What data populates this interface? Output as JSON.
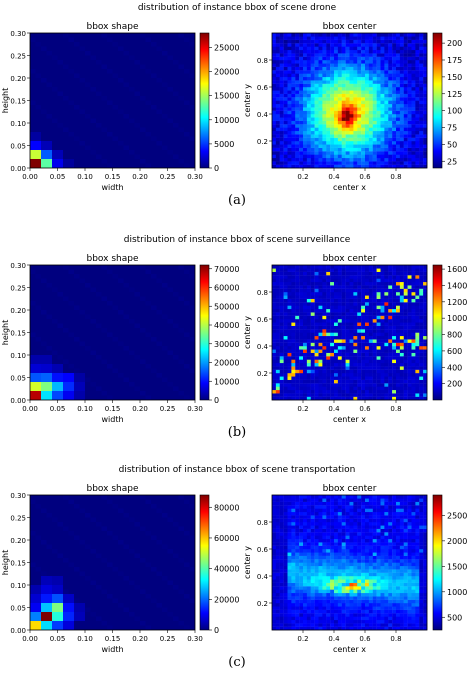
{
  "caption_labels": [
    "(a)",
    "(b)",
    "(c)"
  ],
  "colors": {
    "colormap": "jet",
    "stops": [
      "#00007f",
      "#0000ff",
      "#007fff",
      "#00ffff",
      "#7fff7f",
      "#ffff00",
      "#ff7f00",
      "#ff0000",
      "#7f0000"
    ]
  },
  "chart_data": [
    {
      "type": "heatmap",
      "title": "distribution of instance bbox of scene drone",
      "panels": [
        {
          "title": "bbox shape",
          "xlabel": "width",
          "ylabel": "height",
          "xlim": [
            0,
            0.3
          ],
          "ylim": [
            0,
            0.3
          ],
          "xticks": [
            "0.00",
            "0.05",
            "0.10",
            "0.15",
            "0.20",
            "0.25",
            "0.30"
          ],
          "yticks": [
            "0.00",
            "0.05",
            "0.10",
            "0.15",
            "0.20",
            "0.25",
            "0.30"
          ],
          "colorbar_max": 28000,
          "colorbar_ticks": [
            0,
            5000,
            10000,
            15000,
            20000,
            25000
          ],
          "hot_bins": [
            [
              0,
              0,
              28000
            ],
            [
              0,
              1,
              16000
            ],
            [
              1,
              0,
              13000
            ],
            [
              1,
              1,
              6000
            ],
            [
              2,
              0,
              3000
            ],
            [
              0,
              2,
              3500
            ],
            [
              1,
              2,
              1500
            ],
            [
              2,
              1,
              1500
            ],
            [
              3,
              0,
              800
            ],
            [
              0,
              3,
              900
            ]
          ]
        },
        {
          "title": "bbox center",
          "xlabel": "center x",
          "ylabel": "center y",
          "xlim": [
            0,
            1
          ],
          "ylim": [
            0,
            1
          ],
          "xticks": [
            "0.2",
            "0.4",
            "0.6",
            "0.8"
          ],
          "yticks": [
            "0.2",
            "0.4",
            "0.6",
            "0.8"
          ],
          "colorbar_min": 15,
          "colorbar_max": 215,
          "colorbar_ticks": [
            25,
            50,
            75,
            100,
            125,
            150,
            175,
            200
          ],
          "pattern": "central_blob",
          "peak": {
            "x": 0.49,
            "y": 0.38,
            "value": 215
          }
        }
      ]
    },
    {
      "type": "heatmap",
      "title": "distribution of instance bbox of scene surveillance",
      "panels": [
        {
          "title": "bbox shape",
          "xlabel": "width",
          "ylabel": "height",
          "xlim": [
            0,
            0.3
          ],
          "ylim": [
            0,
            0.3
          ],
          "xticks": [
            "0.00",
            "0.05",
            "0.10",
            "0.15",
            "0.20",
            "0.25",
            "0.30"
          ],
          "yticks": [
            "0.00",
            "0.05",
            "0.10",
            "0.15",
            "0.20",
            "0.25",
            "0.30"
          ],
          "colorbar_max": 72000,
          "colorbar_ticks": [
            0,
            10000,
            20000,
            30000,
            40000,
            50000,
            60000,
            70000
          ],
          "hot_bins": [
            [
              0,
              0,
              68000
            ],
            [
              0,
              1,
              42000
            ],
            [
              1,
              1,
              36000
            ],
            [
              1,
              0,
              25000
            ],
            [
              2,
              1,
              22000
            ],
            [
              0,
              2,
              15000
            ],
            [
              2,
              0,
              14000
            ],
            [
              1,
              2,
              16000
            ],
            [
              3,
              1,
              12000
            ],
            [
              2,
              2,
              10000
            ],
            [
              3,
              0,
              8000
            ],
            [
              3,
              2,
              9000
            ],
            [
              0,
              3,
              6000
            ],
            [
              1,
              3,
              5500
            ],
            [
              4,
              1,
              4000
            ],
            [
              4,
              0,
              3000
            ],
            [
              2,
              3,
              3500
            ],
            [
              1,
              4,
              3000
            ],
            [
              0,
              4,
              3000
            ],
            [
              4,
              2,
              2500
            ]
          ]
        },
        {
          "title": "bbox center",
          "xlabel": "center x",
          "ylabel": "center y",
          "xlim": [
            0,
            1
          ],
          "ylim": [
            0,
            1
          ],
          "xticks": [
            "0.2",
            "0.4",
            "0.6",
            "0.8"
          ],
          "yticks": [
            "0.2",
            "0.4",
            "0.6",
            "0.8"
          ],
          "colorbar_min": 0,
          "colorbar_max": 1650,
          "colorbar_ticks": [
            200,
            400,
            600,
            800,
            1000,
            1200,
            1400,
            1600
          ],
          "pattern": "sparse_diagonal"
        }
      ]
    },
    {
      "type": "heatmap",
      "title": "distribution of instance bbox of scene transportation",
      "panels": [
        {
          "title": "bbox shape",
          "xlabel": "width",
          "ylabel": "height",
          "xlim": [
            0,
            0.3
          ],
          "ylim": [
            0,
            0.3
          ],
          "xticks": [
            "0.00",
            "0.05",
            "0.10",
            "0.15",
            "0.20",
            "0.25",
            "0.30"
          ],
          "yticks": [
            "0.00",
            "0.05",
            "0.10",
            "0.15",
            "0.20",
            "0.25",
            "0.30"
          ],
          "colorbar_max": 88000,
          "colorbar_ticks": [
            0,
            20000,
            40000,
            60000,
            80000
          ],
          "hot_bins": [
            [
              0,
              0,
              58000
            ],
            [
              1,
              0,
              30000
            ],
            [
              1,
              1,
              88000
            ],
            [
              0,
              1,
              22000
            ],
            [
              2,
              1,
              36000
            ],
            [
              2,
              2,
              44000
            ],
            [
              1,
              2,
              28000
            ],
            [
              2,
              0,
              16000
            ],
            [
              3,
              1,
              14000
            ],
            [
              2,
              3,
              18000
            ],
            [
              1,
              3,
              13000
            ],
            [
              3,
              2,
              12000
            ],
            [
              3,
              0,
              8000
            ],
            [
              0,
              2,
              10000
            ],
            [
              0,
              3,
              7000
            ],
            [
              1,
              4,
              8000
            ],
            [
              2,
              4,
              6000
            ],
            [
              3,
              3,
              6000
            ],
            [
              4,
              1,
              5000
            ],
            [
              4,
              2,
              4000
            ],
            [
              1,
              5,
              5000
            ],
            [
              2,
              5,
              4000
            ],
            [
              0,
              4,
              4000
            ]
          ]
        },
        {
          "title": "bbox center",
          "xlabel": "center x",
          "ylabel": "center y",
          "xlim": [
            0,
            1
          ],
          "ylim": [
            0,
            1
          ],
          "xticks": [
            "0.2",
            "0.4",
            "0.6",
            "0.8"
          ],
          "yticks": [
            "0.2",
            "0.4",
            "0.6",
            "0.8"
          ],
          "colorbar_min": 250,
          "colorbar_max": 2900,
          "colorbar_ticks": [
            500,
            1000,
            1500,
            2000,
            2500
          ],
          "pattern": "band"
        }
      ]
    }
  ]
}
